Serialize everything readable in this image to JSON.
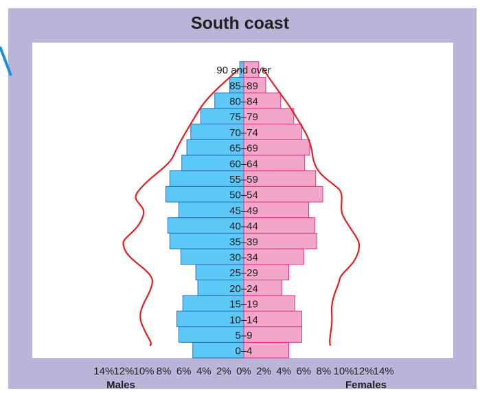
{
  "chart_data": {
    "type": "bar",
    "title": "South coast",
    "categories": [
      "0–4",
      "5–9",
      "10–14",
      "15–19",
      "20–24",
      "25–29",
      "30–34",
      "35–39",
      "40–44",
      "45–49",
      "50–54",
      "55–59",
      "60–64",
      "65–69",
      "70–74",
      "75–79",
      "80–84",
      "85–89",
      "90 and over"
    ],
    "series": [
      {
        "name": "Males",
        "side": "left",
        "color": "#5bc8f5",
        "values": [
          5.1,
          6.5,
          6.7,
          6.1,
          4.6,
          4.8,
          6.3,
          7.4,
          7.6,
          6.5,
          7.8,
          7.4,
          6.2,
          5.7,
          5.3,
          4.3,
          2.9,
          1.4,
          0.4
        ]
      },
      {
        "name": "Females",
        "side": "right",
        "color": "#f4a6c8",
        "values": [
          4.5,
          5.8,
          5.8,
          5.1,
          3.8,
          4.5,
          6.0,
          7.3,
          7.1,
          6.5,
          7.9,
          7.2,
          6.1,
          6.6,
          5.8,
          5.0,
          3.7,
          2.2,
          1.5
        ]
      }
    ],
    "xlabel_left": "Males",
    "xlabel_right": "Females",
    "xticks": [
      "14%",
      "12%",
      "10%",
      "8%",
      "6%",
      "4%",
      "2%",
      "0%",
      "2%",
      "4%",
      "6%",
      "8%",
      "10%",
      "12%",
      "14%"
    ],
    "xlim": [
      -14,
      14
    ],
    "overlay_line_color": "#e31e24",
    "colors": {
      "frame": "#bbb4d9",
      "bar_stroke_male": "#2a6fb5",
      "bar_stroke_female": "#e0308f",
      "text": "#231f20"
    }
  }
}
